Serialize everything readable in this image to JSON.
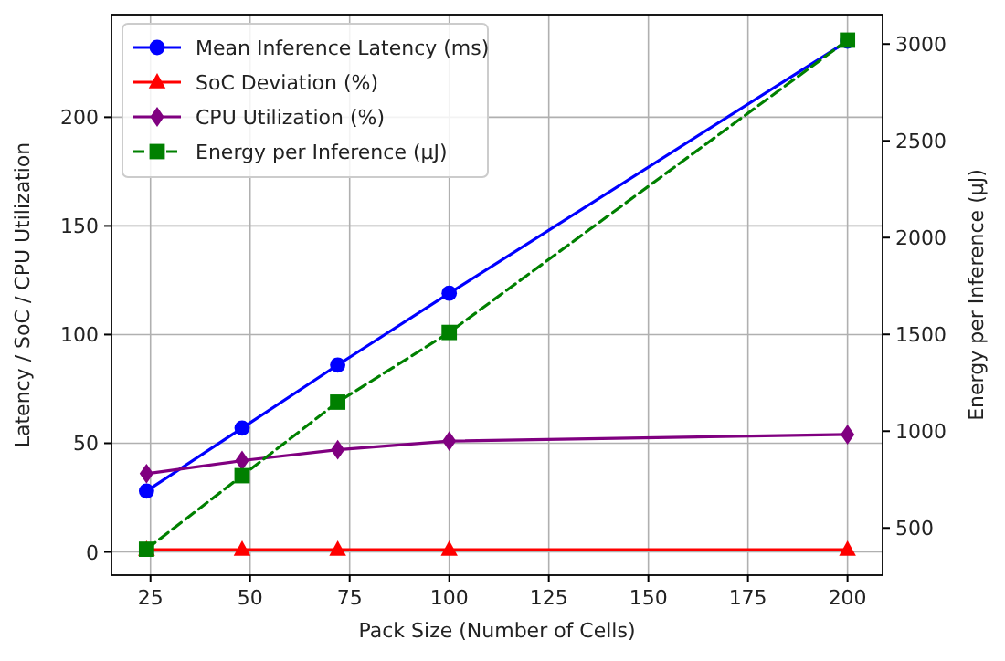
{
  "chart_data": {
    "type": "line",
    "xlabel": "Pack Size (Number of Cells)",
    "ylabel": "Latency / SoC / CPU Utilization",
    "y2label": "Energy per Inference (µJ)",
    "x": [
      24,
      48,
      72,
      100,
      200
    ],
    "series": [
      {
        "name": "Mean Inference Latency (ms)",
        "color": "#0000ff",
        "values": [
          28,
          57,
          86,
          119,
          235
        ],
        "marker": "circle",
        "line_style": "solid"
      },
      {
        "name": "SoC Deviation (%)",
        "color": "#ff0000",
        "values": [
          1,
          1,
          1,
          1,
          1
        ],
        "marker": "triangle",
        "line_style": "solid"
      },
      {
        "name": "CPU Utilization (%)",
        "color": "#800080",
        "values": [
          36,
          42,
          47,
          51,
          54
        ],
        "marker": "diamond",
        "line_style": "solid"
      },
      {
        "name": "Energy per Inference (µJ)",
        "color": "#008000",
        "values": [
          390,
          770,
          1150,
          1510,
          3020
        ],
        "marker": "square",
        "line_style": "dashed",
        "axis": "y2"
      }
    ],
    "xlim": [
      15.2,
      208.8
    ],
    "xticks": [
      25,
      50,
      75,
      100,
      125,
      150,
      175,
      200
    ],
    "ylim": [
      -10.7,
      247.2
    ],
    "yticks": [
      0,
      50,
      100,
      150,
      200
    ],
    "y2lim": [
      256,
      3152
    ],
    "y2ticks": [
      500,
      1000,
      1500,
      2000,
      2500,
      3000
    ],
    "grid": true,
    "legend": "top left"
  }
}
